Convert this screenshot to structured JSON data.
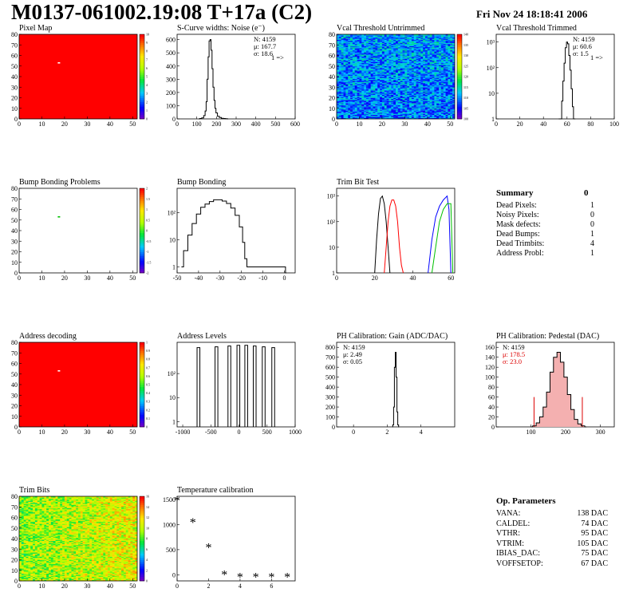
{
  "header": {
    "title": "M0137-061002.19:08 T+17a (C2)",
    "datetime": "Fri Nov 24 18:18:41 2006"
  },
  "chart_data": [
    {
      "id": "pixel-map",
      "type": "heatmap",
      "title": "Pixel Map",
      "xlim": [
        0,
        52
      ],
      "ylim": [
        0,
        80
      ],
      "xticks": [
        0,
        10,
        20,
        30,
        40,
        50
      ],
      "yticks": [
        0,
        10,
        20,
        30,
        40,
        50,
        60,
        70,
        80
      ],
      "zlim": [
        0,
        10
      ],
      "zticks": [
        0,
        1,
        2,
        3,
        4,
        5,
        6,
        7,
        8,
        9,
        10
      ],
      "fill_value": 10,
      "fill_color": "#ff0000",
      "dead_pixels": [
        {
          "col": 17,
          "row": 53
        }
      ]
    },
    {
      "id": "scurve-noise",
      "type": "line",
      "title": "S-Curve widths: Noise (e⁻)",
      "xlim": [
        0,
        600
      ],
      "ylim": [
        0,
        640
      ],
      "xticks": [
        0,
        100,
        200,
        300,
        400,
        500,
        600
      ],
      "yticks": [
        0,
        100,
        200,
        300,
        400,
        500,
        600
      ],
      "stats": {
        "N": "4159",
        "mu": "167.7",
        "sigma": "18.6"
      },
      "overflow_label": "1 =>",
      "x": [
        110,
        120,
        130,
        140,
        145,
        150,
        155,
        160,
        165,
        170,
        175,
        180,
        185,
        190,
        195,
        200,
        210,
        220,
        230,
        240,
        250,
        260
      ],
      "y": [
        0,
        3,
        8,
        25,
        60,
        130,
        300,
        470,
        590,
        600,
        520,
        380,
        240,
        140,
        80,
        45,
        20,
        10,
        5,
        3,
        2,
        0
      ]
    },
    {
      "id": "vcal-untrimmed",
      "type": "heatmap",
      "title": "Vcal Threshold Untrimmed",
      "xlim": [
        0,
        52
      ],
      "ylim": [
        0,
        80
      ],
      "xticks": [
        0,
        10,
        20,
        30,
        40,
        50
      ],
      "yticks": [
        0,
        10,
        20,
        30,
        40,
        50,
        60,
        70,
        80
      ],
      "zlim": [
        100,
        140
      ],
      "zticks": [
        100,
        105,
        110,
        115,
        120,
        125,
        130,
        135,
        140
      ]
    },
    {
      "id": "vcal-trimmed",
      "type": "line",
      "title": "Vcal Threshold Trimmed",
      "xlim": [
        0,
        100
      ],
      "ylim": [
        1,
        2000
      ],
      "yscale": "log",
      "xticks": [
        0,
        20,
        40,
        60,
        80,
        100
      ],
      "yticks": [
        1,
        10,
        100,
        1000
      ],
      "stats": {
        "N": "4159",
        "mu": "60.6",
        "sigma": "1.5"
      },
      "overflow_label": "1 =>",
      "x": [
        53,
        54,
        55,
        56,
        57,
        58,
        59,
        60,
        61,
        62,
        63,
        64,
        65,
        66,
        67
      ],
      "y": [
        0,
        1,
        1,
        5,
        30,
        150,
        600,
        1000,
        850,
        300,
        80,
        15,
        3,
        1,
        0
      ]
    },
    {
      "id": "bump-bonding-problems",
      "type": "heatmap",
      "title": "Bump Bonding Problems",
      "xlim": [
        0,
        52
      ],
      "ylim": [
        0,
        80
      ],
      "xticks": [
        0,
        10,
        20,
        30,
        40,
        50
      ],
      "yticks": [
        0,
        10,
        20,
        30,
        40,
        50,
        60,
        70,
        80
      ],
      "zlim": [
        -2,
        2
      ],
      "zticks": [
        -2,
        -1.5,
        -1,
        -0.5,
        0,
        0.5,
        1,
        1.5,
        2
      ],
      "marked_pixels": [
        {
          "col": 17,
          "row": 53
        }
      ]
    },
    {
      "id": "bump-bonding",
      "type": "line",
      "title": "Bump Bonding",
      "xlim": [
        -50,
        5
      ],
      "ylim": [
        0.6,
        800
      ],
      "yscale": "log",
      "xticks": [
        -50,
        -40,
        -30,
        -20,
        -10,
        0
      ],
      "yticks": [
        1,
        10,
        100
      ],
      "x": [
        -48,
        -46,
        -44,
        -42,
        -40,
        -38,
        -36,
        -34,
        -32,
        -30,
        -28,
        -26,
        -24,
        -22,
        -20,
        -19,
        -18,
        -17,
        0,
        1
      ],
      "y": [
        1,
        4,
        15,
        40,
        90,
        160,
        210,
        260,
        300,
        300,
        270,
        220,
        150,
        80,
        30,
        8,
        2,
        1,
        1,
        0
      ]
    },
    {
      "id": "trim-bit-test",
      "type": "line",
      "title": "Trim Bit Test",
      "xlim": [
        0,
        62
      ],
      "ylim": [
        1,
        2000
      ],
      "yscale": "log",
      "xticks": [
        0,
        20,
        40,
        60
      ],
      "yticks": [
        1,
        10,
        100,
        1000
      ],
      "series": [
        {
          "color": "#000000",
          "x": [
            20,
            21,
            22,
            23,
            24,
            25,
            26,
            27,
            28
          ],
          "y": [
            1,
            20,
            200,
            800,
            1000,
            500,
            100,
            10,
            1
          ]
        },
        {
          "color": "#ff0000",
          "x": [
            25,
            26,
            27,
            28,
            29,
            30,
            31,
            32,
            33,
            34,
            35
          ],
          "y": [
            1,
            10,
            100,
            400,
            700,
            700,
            400,
            100,
            10,
            2,
            1
          ]
        },
        {
          "color": "#0000ff",
          "x": [
            48,
            50,
            52,
            54,
            56,
            58,
            59,
            60
          ],
          "y": [
            1,
            20,
            150,
            400,
            700,
            1000,
            300,
            1
          ]
        },
        {
          "color": "#00c000",
          "x": [
            50,
            52,
            54,
            56,
            58,
            60,
            61
          ],
          "y": [
            1,
            10,
            100,
            300,
            500,
            500,
            1
          ]
        }
      ]
    },
    {
      "id": "address-decoding",
      "type": "heatmap",
      "title": "Address decoding",
      "xlim": [
        0,
        52
      ],
      "ylim": [
        0,
        80
      ],
      "xticks": [
        0,
        10,
        20,
        30,
        40,
        50
      ],
      "yticks": [
        0,
        10,
        20,
        30,
        40,
        50,
        60,
        70,
        80
      ],
      "zlim": [
        0,
        1
      ],
      "zticks": [
        0,
        0.1,
        0.2,
        0.3,
        0.4,
        0.5,
        0.6,
        0.7,
        0.8,
        0.9,
        1
      ],
      "fill_value": 1,
      "fill_color": "#ff0000",
      "dead_pixels": [
        {
          "col": 17,
          "row": 53
        }
      ]
    },
    {
      "id": "address-levels",
      "type": "line",
      "title": "Address Levels",
      "xlim": [
        -1100,
        1000
      ],
      "ylim": [
        0.6,
        2000
      ],
      "yscale": "log",
      "xticks": [
        -1000,
        -500,
        0,
        500,
        1000
      ],
      "yticks": [
        1,
        10,
        100
      ],
      "peaks": [
        -720,
        -400,
        -170,
        -10,
        130,
        280,
        440,
        610
      ],
      "peak_heights": [
        1200,
        1300,
        1400,
        1500,
        1500,
        1400,
        1300,
        1200
      ]
    },
    {
      "id": "ph-gain",
      "type": "line",
      "title": "PH Calibration: Gain (ADC/DAC)",
      "xlim": [
        -1,
        6
      ],
      "ylim": [
        0,
        850
      ],
      "xticks": [
        0,
        2,
        4
      ],
      "yticks": [
        0,
        100,
        200,
        300,
        400,
        500,
        600,
        700,
        800
      ],
      "stats": {
        "N": "4159",
        "mu": "2.49",
        "sigma": "0.05"
      },
      "x": [
        2.3,
        2.35,
        2.4,
        2.45,
        2.5,
        2.55,
        2.6,
        2.65,
        2.7
      ],
      "y": [
        0,
        20,
        200,
        600,
        750,
        500,
        150,
        20,
        0
      ]
    },
    {
      "id": "ph-pedestal",
      "type": "line",
      "title": "PH Calibration: Pedestal (DAC)",
      "xlim": [
        0,
        340
      ],
      "ylim": [
        0,
        170
      ],
      "xticks": [
        100,
        200,
        300
      ],
      "yticks": [
        0,
        20,
        40,
        60,
        80,
        100,
        120,
        140,
        160
      ],
      "stats": {
        "N": "4159",
        "mu": "178.5",
        "sigma": "23.0"
      },
      "cut_lines": [
        109,
        248
      ],
      "x": [
        100,
        110,
        120,
        130,
        140,
        150,
        160,
        170,
        180,
        190,
        200,
        210,
        220,
        230,
        240,
        250,
        260
      ],
      "y": [
        0,
        2,
        8,
        20,
        40,
        70,
        110,
        140,
        150,
        130,
        100,
        65,
        35,
        15,
        6,
        2,
        0
      ]
    },
    {
      "id": "trim-bits",
      "type": "heatmap",
      "title": "Trim Bits",
      "xlim": [
        0,
        52
      ],
      "ylim": [
        0,
        80
      ],
      "xticks": [
        0,
        10,
        20,
        30,
        40,
        50
      ],
      "yticks": [
        0,
        10,
        20,
        30,
        40,
        50,
        60,
        70,
        80
      ],
      "zlim": [
        0,
        16
      ],
      "zticks": [
        0,
        2,
        4,
        6,
        8,
        10,
        12,
        14,
        16
      ]
    },
    {
      "id": "temperature-calibration",
      "type": "scatter",
      "title": "Temperature calibration",
      "xlim": [
        0,
        7.5
      ],
      "ylim": [
        -120,
        1560
      ],
      "xticks": [
        0,
        2,
        4,
        6
      ],
      "yticks": [
        0,
        500,
        1000,
        1500
      ],
      "x": [
        0,
        1,
        2,
        3,
        4,
        5,
        6,
        7
      ],
      "y": [
        1470,
        1040,
        540,
        0,
        -50,
        -50,
        -50,
        -50
      ]
    }
  ],
  "summary": {
    "title": "Summary",
    "total": "0",
    "rows": [
      {
        "label": "Dead Pixels:",
        "value": "1"
      },
      {
        "label": "Noisy Pixels:",
        "value": "0"
      },
      {
        "label": "Mask defects:",
        "value": "0"
      },
      {
        "label": "Dead Bumps:",
        "value": "1"
      },
      {
        "label": "Dead Trimbits:",
        "value": "4"
      },
      {
        "label": "Address Probl:",
        "value": "1"
      }
    ]
  },
  "parameters": {
    "title": "Op. Parameters",
    "rows": [
      {
        "label": "VANA:",
        "value": "138 DAC"
      },
      {
        "label": "CALDEL:",
        "value": "74 DAC"
      },
      {
        "label": "VTHR:",
        "value": "95 DAC"
      },
      {
        "label": "VTRIM:",
        "value": "105 DAC"
      },
      {
        "label": "IBIAS_DAC:",
        "value": "75 DAC"
      },
      {
        "label": "VOFFSETOP:",
        "value": "67 DAC"
      }
    ]
  }
}
